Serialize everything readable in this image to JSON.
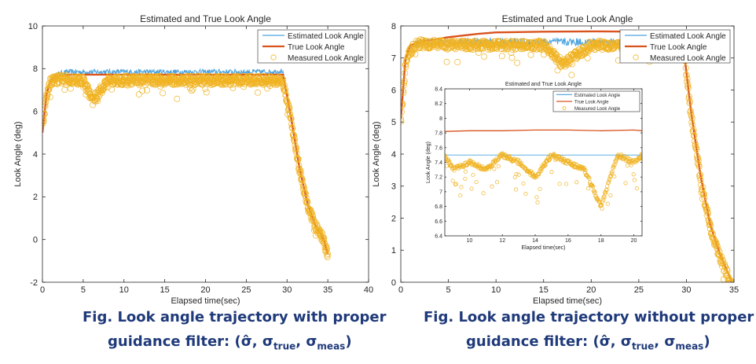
{
  "figures": [
    {
      "caption_line1": "Fig. Look angle trajectory with proper",
      "caption_line2_prefix": "guidance filter: (",
      "caption_sym_hat": "σ̂",
      "caption_sym_true": "σ",
      "caption_sub_true": "true",
      "caption_sym_meas": "σ",
      "caption_sub_meas": "meas",
      "caption_suffix": ")"
    },
    {
      "caption_line1": "Fig. Look angle trajectory without proper",
      "caption_line2_prefix": "guidance filter: (",
      "caption_sym_hat": "σ̂",
      "caption_sym_true": "σ",
      "caption_sub_true": "true",
      "caption_sym_meas": "σ",
      "caption_sub_meas": "meas",
      "caption_suffix": ")"
    }
  ],
  "chart_data": [
    {
      "type": "line",
      "title": "Estimated and True Look Angle",
      "xlabel": "Elapsed time(sec)",
      "ylabel": "Look Angle (deg)",
      "xlim": [
        0,
        40
      ],
      "ylim": [
        -2,
        10
      ],
      "xticks": [
        0,
        5,
        10,
        15,
        20,
        25,
        30,
        35,
        40
      ],
      "yticks": [
        -2,
        0,
        2,
        4,
        6,
        8,
        10
      ],
      "legend_position": "top-right",
      "grid": false,
      "series": [
        {
          "name": "Estimated Look Angle",
          "style": "line",
          "color": "#4aa3df",
          "x": [
            0,
            0.5,
            1,
            2,
            3,
            5,
            8,
            12,
            16,
            20,
            24,
            28,
            29.5,
            30.5,
            31.5,
            32.5,
            33.5,
            34.5,
            35
          ],
          "y": [
            5.0,
            6.8,
            7.5,
            7.75,
            7.85,
            7.85,
            7.85,
            7.85,
            7.85,
            7.85,
            7.85,
            7.85,
            7.9,
            5.8,
            3.5,
            1.8,
            0.7,
            0.1,
            -0.6
          ]
        },
        {
          "name": "True Look Angle",
          "style": "line",
          "color": "#d9531e",
          "x": [
            0,
            0.5,
            1,
            2,
            3,
            5,
            8,
            12,
            16,
            20,
            24,
            28,
            29.5,
            30.5,
            31.5,
            32.5,
            33.5,
            34.5,
            35
          ],
          "y": [
            5.0,
            6.8,
            7.45,
            7.65,
            7.72,
            7.72,
            7.72,
            7.72,
            7.72,
            7.72,
            7.72,
            7.72,
            7.72,
            5.7,
            3.4,
            1.7,
            0.6,
            0.0,
            -0.7
          ]
        },
        {
          "name": "Measured Look Angle",
          "style": "scatter",
          "color": "#f0b323",
          "x": [
            0,
            0.5,
            1,
            2,
            3,
            5,
            6.2,
            8,
            12,
            16,
            20,
            24,
            28,
            29.5,
            30.5,
            31.5,
            32.5,
            33.5,
            34.5,
            35
          ],
          "y": [
            5.2,
            6.7,
            7.4,
            7.5,
            7.5,
            7.45,
            6.5,
            7.45,
            7.45,
            7.45,
            7.45,
            7.45,
            7.45,
            7.4,
            5.6,
            3.3,
            1.6,
            0.6,
            0.0,
            -0.8
          ]
        }
      ]
    },
    {
      "type": "line",
      "title": "Estimated and True Look Angle",
      "xlabel": "Elapsed time(sec)",
      "ylabel": "Look Angle (deg)",
      "xlim": [
        0,
        35
      ],
      "ylim": [
        0,
        8
      ],
      "xticks": [
        0,
        5,
        10,
        15,
        20,
        25,
        30,
        35
      ],
      "yticks": [
        0,
        1,
        2,
        3,
        4,
        5,
        6,
        7,
        8
      ],
      "legend_position": "top-right",
      "grid": false,
      "series": [
        {
          "name": "Estimated Look Angle",
          "style": "line",
          "color": "#4aa3df",
          "x": [
            0,
            0.5,
            1,
            1.5,
            2,
            5,
            10,
            15,
            20,
            25,
            29,
            29.7,
            30.5,
            31.5,
            32.5,
            33.5,
            34.5,
            35
          ],
          "y": [
            5.1,
            6.9,
            7.3,
            7.45,
            7.5,
            7.5,
            7.5,
            7.5,
            7.5,
            7.5,
            7.5,
            7.5,
            5.3,
            3.3,
            1.8,
            0.9,
            0.2,
            -0.2
          ]
        },
        {
          "name": "True Look Angle",
          "style": "line",
          "color": "#d9531e",
          "x": [
            0,
            0.5,
            1,
            2,
            3,
            5,
            8,
            10,
            15,
            20,
            25,
            28,
            29,
            29.7,
            30.5,
            31.5,
            32.5,
            33.5,
            34.5,
            35
          ],
          "y": [
            5.1,
            7.0,
            7.4,
            7.5,
            7.55,
            7.65,
            7.75,
            7.8,
            7.82,
            7.83,
            7.82,
            7.8,
            7.7,
            7.3,
            5.3,
            3.3,
            1.8,
            0.9,
            0.2,
            -0.2
          ]
        },
        {
          "name": "Measured Look Angle",
          "style": "scatter",
          "color": "#f0b323",
          "x": [
            0,
            0.5,
            1,
            1.5,
            2,
            5,
            8,
            10,
            15,
            17,
            20,
            25,
            29,
            29.7,
            30.5,
            31.5,
            32.5,
            33.5,
            34.5,
            35
          ],
          "y": [
            5.0,
            6.8,
            7.2,
            7.4,
            7.45,
            7.4,
            7.4,
            7.4,
            7.4,
            6.8,
            7.4,
            7.4,
            7.4,
            7.3,
            5.2,
            3.2,
            1.7,
            0.8,
            0.1,
            -0.4
          ]
        }
      ]
    },
    {
      "type": "line",
      "title": "Estimated and True Look Angle",
      "xlabel": "Elapsed time(sec)",
      "ylabel": "Look Angle (deg)",
      "xlim": [
        8.5,
        20.5
      ],
      "ylim": [
        6.4,
        8.4
      ],
      "xticks": [
        10,
        12,
        14,
        16,
        18,
        20
      ],
      "yticks": [
        6.4,
        6.6,
        6.8,
        7,
        7.2,
        7.4,
        7.6,
        7.8,
        8,
        8.2,
        8.4
      ],
      "legend_position": "top-right",
      "grid": false,
      "series": [
        {
          "name": "Estimated Look Angle",
          "style": "line",
          "color": "#4aa3df",
          "x": [
            8.5,
            20.5
          ],
          "y": [
            7.5,
            7.5
          ]
        },
        {
          "name": "True Look Angle",
          "style": "line",
          "color": "#d9531e",
          "x": [
            8.5,
            10,
            12,
            14,
            16,
            18,
            20,
            20.5
          ],
          "y": [
            7.82,
            7.83,
            7.83,
            7.84,
            7.84,
            7.83,
            7.84,
            7.83
          ]
        },
        {
          "name": "Measured Look Angle",
          "style": "scatter",
          "color": "#f0b323",
          "x": [
            8.5,
            9,
            10,
            11,
            12,
            13,
            14,
            15,
            16,
            17,
            18,
            19,
            20,
            20.5
          ],
          "y": [
            7.5,
            7.3,
            7.4,
            7.3,
            7.5,
            7.4,
            7.2,
            7.5,
            7.4,
            7.3,
            6.8,
            7.5,
            7.4,
            7.5
          ]
        }
      ]
    }
  ]
}
